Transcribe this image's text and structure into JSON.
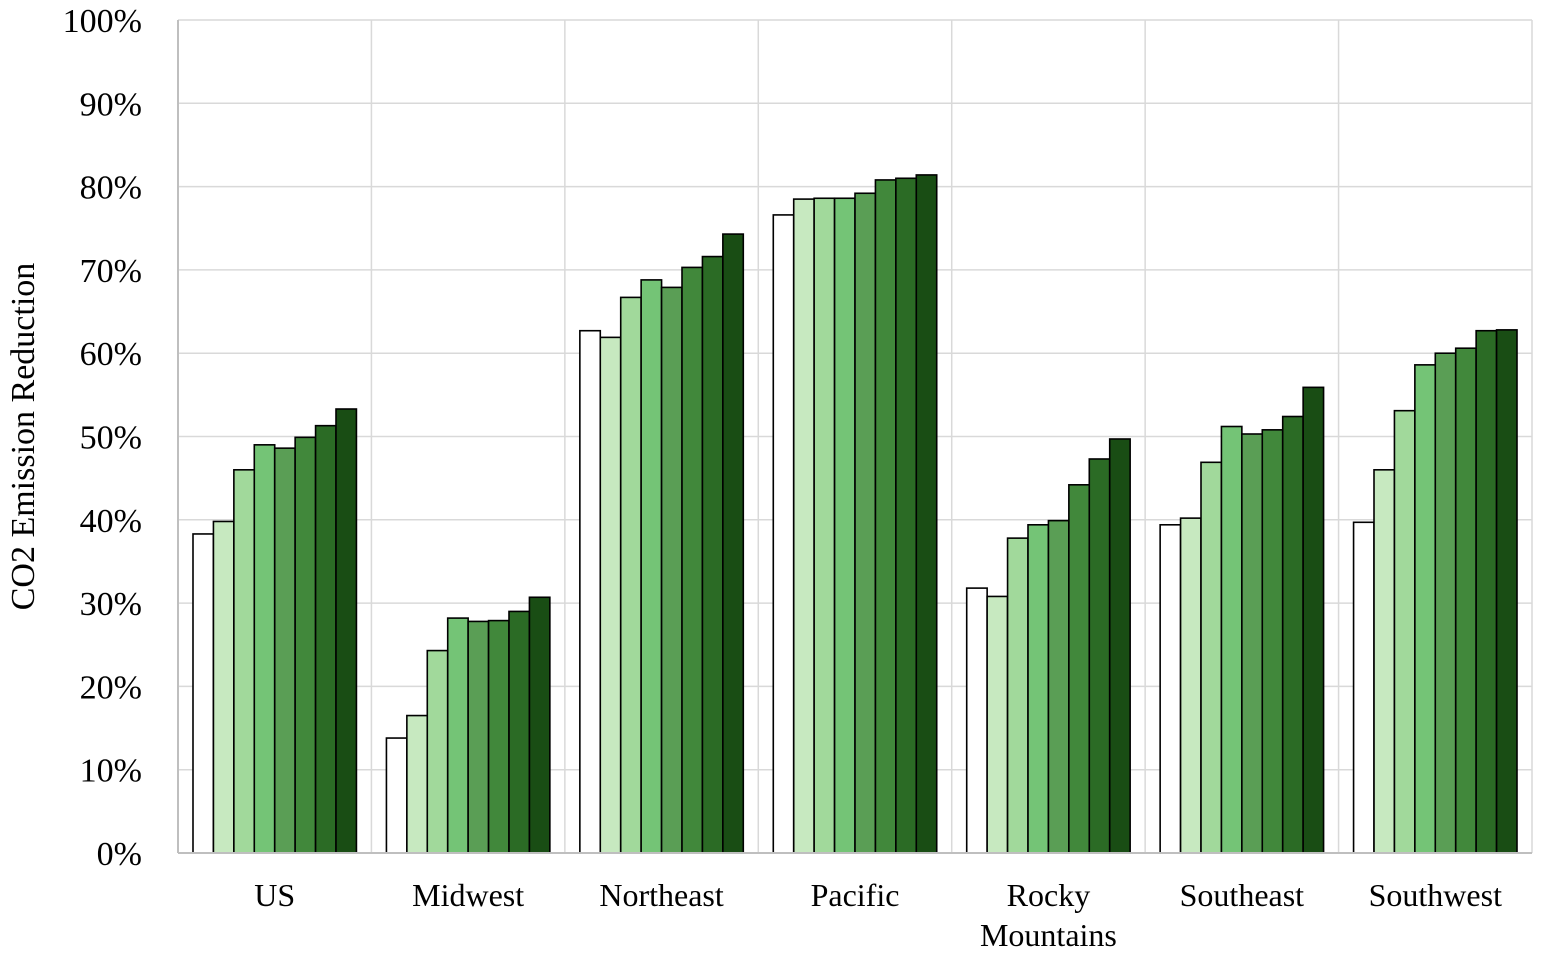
{
  "chart_data": {
    "type": "bar",
    "title": "",
    "xlabel": "",
    "ylabel": "CO2 Emission Reduction",
    "ylim": [
      0,
      100
    ],
    "yticks": [
      "0%",
      "10%",
      "20%",
      "30%",
      "40%",
      "50%",
      "60%",
      "70%",
      "80%",
      "90%",
      "100%"
    ],
    "grid": true,
    "legend": "none",
    "categories": [
      "US",
      "Midwest",
      "Northeast",
      "Pacific",
      "Rocky Mountains",
      "Southeast",
      "Southwest"
    ],
    "category_label_lines": [
      [
        "US"
      ],
      [
        "Midwest"
      ],
      [
        "Northeast"
      ],
      [
        "Pacific"
      ],
      [
        "Rocky",
        "Mountains"
      ],
      [
        "Southeast"
      ],
      [
        "Southwest"
      ]
    ],
    "series_colors": [
      "#ffffff",
      "#c7e9c0",
      "#a1d99b",
      "#74c476",
      "#5a9e55",
      "#41883b",
      "#2b6b25",
      "#194d14"
    ],
    "series": [
      {
        "values": [
          38.3,
          13.8,
          62.7,
          76.6,
          31.8,
          39.4,
          39.7
        ]
      },
      {
        "values": [
          39.8,
          16.5,
          61.9,
          78.5,
          30.8,
          40.2,
          46.0
        ]
      },
      {
        "values": [
          46.0,
          24.3,
          66.7,
          78.6,
          37.8,
          46.9,
          53.1
        ]
      },
      {
        "values": [
          49.0,
          28.2,
          68.8,
          78.6,
          39.4,
          51.2,
          58.6
        ]
      },
      {
        "values": [
          48.6,
          27.8,
          67.9,
          79.2,
          39.9,
          50.3,
          60.0
        ]
      },
      {
        "values": [
          49.9,
          27.9,
          70.3,
          80.8,
          44.2,
          50.8,
          60.6
        ]
      },
      {
        "values": [
          51.3,
          29.0,
          71.6,
          81.0,
          47.3,
          52.4,
          62.7
        ]
      },
      {
        "values": [
          53.3,
          30.7,
          74.3,
          81.4,
          49.7,
          55.9,
          62.8
        ]
      }
    ]
  }
}
